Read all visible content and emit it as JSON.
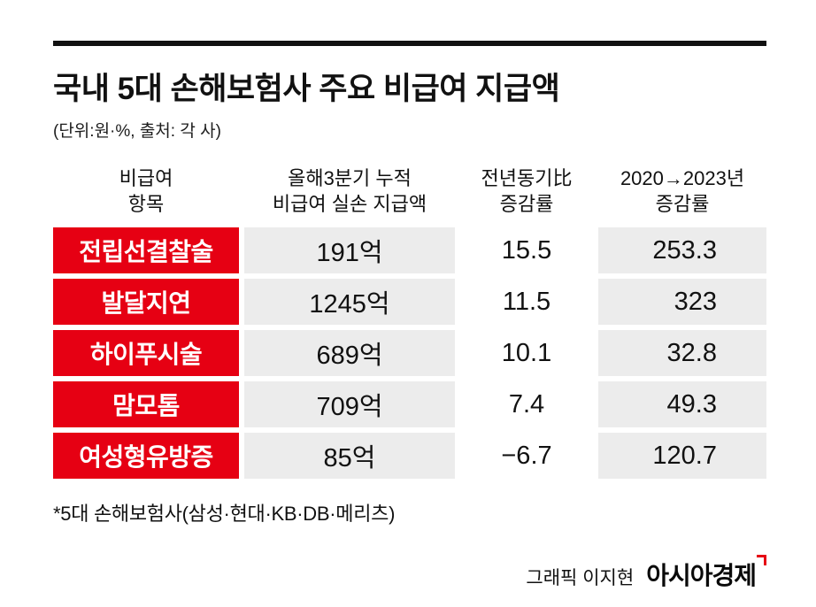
{
  "title": "국내 5대 손해보험사 주요 비급여 지급액",
  "subtitle": "(단위:원·%, 출처: 각 사)",
  "table": {
    "headers": [
      {
        "line1": "비급여",
        "line2": "항목"
      },
      {
        "line1": "올해3분기 누적",
        "line2": "비급여 실손 지급액"
      },
      {
        "line1": "전년동기比",
        "line2": "증감률"
      },
      {
        "line1": "2020→2023년",
        "line2": "증감률"
      }
    ],
    "rows": [
      {
        "item": "전립선결찰술",
        "amount": "191억",
        "yoy": "15.5",
        "change": "253.3"
      },
      {
        "item": "발달지연",
        "amount": "1245억",
        "yoy": "11.5",
        "change": "323"
      },
      {
        "item": "하이푸시술",
        "amount": "689억",
        "yoy": "10.1",
        "change": "32.8"
      },
      {
        "item": "맘모톰",
        "amount": "709억",
        "yoy": "7.4",
        "change": "49.3"
      },
      {
        "item": "여성형유방증",
        "amount": "85억",
        "yoy": "−6.7",
        "change": "120.7"
      }
    ]
  },
  "footnote": "*5대 손해보험사(삼성·현대·KB·DB·메리츠)",
  "credit": "그래픽 이지현",
  "logo": "아시아경제",
  "colors": {
    "accent_red": "#e60013",
    "cell_gray": "#ececec",
    "rule_black": "#111111"
  },
  "chart_data": {
    "type": "table",
    "title": "국내 5대 손해보험사 주요 비급여 지급액",
    "subtitle": "(단위:원·%, 출처: 각 사)",
    "columns": [
      "비급여 항목",
      "올해3분기 누적 비급여 실손 지급액",
      "전년동기比 증감률",
      "2020→2023년 증감률"
    ],
    "rows": [
      [
        "전립선결찰술",
        "191억",
        15.5,
        253.3
      ],
      [
        "발달지연",
        "1245억",
        11.5,
        323
      ],
      [
        "하이푸시술",
        "689억",
        10.1,
        32.8
      ],
      [
        "맘모톰",
        "709억",
        7.4,
        49.3
      ],
      [
        "여성형유방증",
        "85억",
        -6.7,
        120.7
      ]
    ],
    "notes": "*5대 손해보험사(삼성·현대·KB·DB·메리츠)"
  }
}
